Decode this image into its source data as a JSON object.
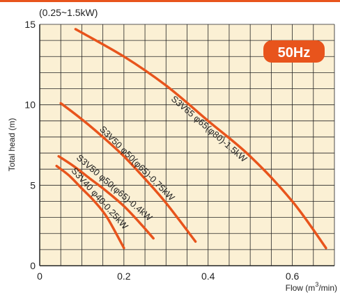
{
  "chart_data": {
    "type": "line",
    "subtitle": "(0.25~1.5kW)",
    "badge": "50Hz",
    "xlabel": "Flow (m",
    "xlabel_sup": "3",
    "xlabel_tail": "/min)",
    "ylabel": "Total head (m)",
    "xlim": [
      0,
      0.7
    ],
    "ylim": [
      0,
      15
    ],
    "x_ticks": [
      "0",
      "0.2",
      "0.4",
      "0.6"
    ],
    "y_ticks": [
      "0",
      "5",
      "10",
      "15"
    ],
    "grid": true,
    "colors": {
      "curve": "#e8541c",
      "grid": "#222222",
      "background": "#fbf0d4",
      "badge": "#e8541c",
      "top_bar": "#e8541c"
    },
    "series": [
      {
        "name": "S3V65 φ65(φ80)-1.5kW",
        "x": [
          0.085,
          0.2,
          0.3,
          0.4,
          0.5,
          0.6,
          0.68
        ],
        "y": [
          14.7,
          13.0,
          11.2,
          9.0,
          6.8,
          4.0,
          1.1
        ]
      },
      {
        "name": "S3V50 φ50(φ65)-0.75kW",
        "x": [
          0.05,
          0.1,
          0.15,
          0.2,
          0.25,
          0.3,
          0.37
        ],
        "y": [
          10.1,
          9.1,
          8.0,
          6.8,
          5.4,
          3.9,
          1.5
        ]
      },
      {
        "name": "S3V50 φ50(φ65)-0.4kW",
        "x": [
          0.045,
          0.08,
          0.12,
          0.16,
          0.2,
          0.24,
          0.27
        ],
        "y": [
          6.8,
          6.2,
          5.4,
          4.6,
          3.7,
          2.6,
          1.7
        ]
      },
      {
        "name": "S3V40 φ40-0.25kW",
        "x": [
          0.04,
          0.07,
          0.1,
          0.13,
          0.16,
          0.2
        ],
        "y": [
          6.2,
          5.6,
          4.8,
          4.0,
          3.0,
          1.1
        ]
      }
    ]
  }
}
